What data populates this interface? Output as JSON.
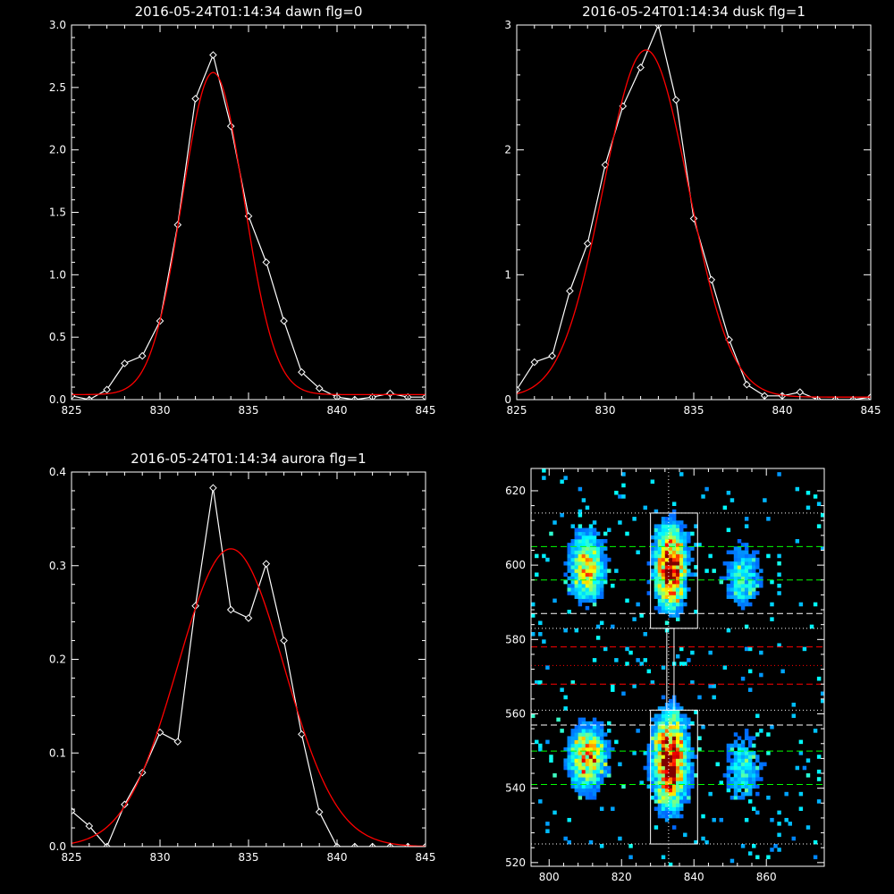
{
  "chart_data": [
    {
      "type": "line",
      "title": "2016-05-24T01:14:34 dawn flg=0",
      "xlim": [
        825,
        845
      ],
      "ylim": [
        0,
        3.0
      ],
      "xticks": [
        825,
        830,
        835,
        840,
        845
      ],
      "xtick_labels": [
        "825",
        "830",
        "835",
        "840",
        "845"
      ],
      "yticks": [
        0,
        0.5,
        1.0,
        1.5,
        2.0,
        2.5,
        3.0
      ],
      "ytick_labels": [
        "0.0",
        "0.5",
        "1.0",
        "1.5",
        "2.0",
        "2.5",
        "3.0"
      ],
      "series": [
        {
          "color": "#ffffff",
          "marker": "diamond",
          "x": [
            825,
            826,
            827,
            828,
            829,
            830,
            831,
            832,
            833,
            834,
            835,
            836,
            837,
            838,
            839,
            840,
            841,
            842,
            843,
            844,
            845
          ],
          "y": [
            0.03,
            0.0,
            0.08,
            0.29,
            0.35,
            0.63,
            1.4,
            2.41,
            2.76,
            2.19,
            1.47,
            1.1,
            0.63,
            0.22,
            0.09,
            0.02,
            0.0,
            0.02,
            0.05,
            0.02,
            0.02
          ]
        },
        {
          "color": "#ff0000",
          "marker": "none",
          "model": "gaussian",
          "amp": 2.58,
          "center": 833.0,
          "sigma": 1.75,
          "offset": 0.04
        }
      ]
    },
    {
      "type": "line",
      "title": "2016-05-24T01:14:34 dusk flg=1",
      "xlim": [
        825,
        845
      ],
      "ylim": [
        0,
        3
      ],
      "xticks": [
        825,
        830,
        835,
        840,
        845
      ],
      "xtick_labels": [
        "825",
        "830",
        "835",
        "840",
        "845"
      ],
      "yticks": [
        0,
        1,
        2,
        3
      ],
      "ytick_labels": [
        "0",
        "1",
        "2",
        "3"
      ],
      "series": [
        {
          "color": "#ffffff",
          "marker": "diamond",
          "x": [
            825,
            826,
            827,
            828,
            829,
            830,
            831,
            832,
            833,
            834,
            835,
            836,
            837,
            838,
            839,
            840,
            841,
            842,
            843,
            844,
            845
          ],
          "y": [
            0.08,
            0.3,
            0.35,
            0.87,
            1.25,
            1.88,
            2.35,
            2.66,
            3.0,
            2.4,
            1.45,
            0.96,
            0.48,
            0.12,
            0.03,
            0.03,
            0.06,
            0.0,
            0.0,
            0.0,
            0.02
          ]
        },
        {
          "color": "#ff0000",
          "marker": "none",
          "model": "gaussian",
          "amp": 2.78,
          "center": 832.3,
          "sigma": 2.4,
          "offset": 0.02
        }
      ]
    },
    {
      "type": "line",
      "title": "2016-05-24T01:14:34 aurora flg=1",
      "xlim": [
        825,
        845
      ],
      "ylim": [
        0,
        0.4
      ],
      "xticks": [
        825,
        830,
        835,
        840,
        845
      ],
      "xtick_labels": [
        "825",
        "830",
        "835",
        "840",
        "845"
      ],
      "yticks": [
        0,
        0.1,
        0.2,
        0.3,
        0.4
      ],
      "ytick_labels": [
        "0.0",
        "0.1",
        "0.2",
        "0.3",
        "0.4"
      ],
      "series": [
        {
          "color": "#ffffff",
          "marker": "diamond",
          "x": [
            825,
            826,
            827,
            828,
            829,
            830,
            831,
            832,
            833,
            834,
            835,
            836,
            837,
            838,
            839,
            840,
            841,
            842,
            843,
            844,
            845
          ],
          "y": [
            0.038,
            0.022,
            0.0,
            0.045,
            0.079,
            0.122,
            0.112,
            0.257,
            0.383,
            0.253,
            0.244,
            0.302,
            0.22,
            0.12,
            0.037,
            0.0,
            0.0,
            0.0,
            0.0,
            0.0,
            0.0
          ]
        },
        {
          "color": "#ff0000",
          "marker": "none",
          "model": "gaussian",
          "amp": 0.318,
          "center": 834.0,
          "sigma": 3.0,
          "offset": 0.0
        }
      ]
    },
    {
      "type": "heatmap",
      "title": "",
      "xlim": [
        795,
        876
      ],
      "ylim": [
        519,
        626
      ],
      "xticks": [
        800,
        820,
        840,
        860
      ],
      "xtick_labels": [
        "800",
        "820",
        "840",
        "860"
      ],
      "yticks": [
        520,
        540,
        560,
        580,
        600,
        620
      ],
      "ytick_labels": [
        "520",
        "540",
        "560",
        "580",
        "600",
        "620"
      ],
      "emission_blobs": [
        {
          "x": 810,
          "y": 599,
          "sx": 2.8,
          "sy": 5.5,
          "peak": 0.62
        },
        {
          "x": 810,
          "y": 548,
          "sx": 3.0,
          "sy": 5.0,
          "peak": 0.68
        },
        {
          "x": 833,
          "y": 599,
          "sx": 2.6,
          "sy": 7.0,
          "peak": 0.95
        },
        {
          "x": 833,
          "y": 547,
          "sx": 2.8,
          "sy": 8.0,
          "peak": 0.98
        },
        {
          "x": 853,
          "y": 596,
          "sx": 3.0,
          "sy": 5.0,
          "peak": 0.3
        },
        {
          "x": 853,
          "y": 545,
          "sx": 3.0,
          "sy": 5.0,
          "peak": 0.3
        }
      ],
      "boxes": [
        {
          "x0": 828,
          "x1": 841,
          "y0": 583,
          "y1": 614,
          "color": "#ffffff"
        },
        {
          "x0": 828,
          "x1": 841,
          "y0": 525,
          "y1": 561,
          "color": "#ffffff"
        },
        {
          "x0": 832.5,
          "x1": 834.5,
          "y0": 561,
          "y1": 583,
          "color": "#ffffff"
        }
      ],
      "vline": {
        "x": 833,
        "color": "#ffffff",
        "style": "dotted"
      },
      "hlines": [
        {
          "y": 614,
          "color": "#ffffff",
          "style": "dotted"
        },
        {
          "y": 605,
          "color": "#00ff00",
          "style": "dashed"
        },
        {
          "y": 596,
          "color": "#00ff00",
          "style": "dashed"
        },
        {
          "y": 587,
          "color": "#ffffff",
          "style": "dashed"
        },
        {
          "y": 583,
          "color": "#ffffff",
          "style": "dotted"
        },
        {
          "y": 578,
          "color": "#ff0000",
          "style": "dashed"
        },
        {
          "y": 573,
          "color": "#ff0000",
          "style": "dotted"
        },
        {
          "y": 568,
          "color": "#ff0000",
          "style": "dashed"
        },
        {
          "y": 561,
          "color": "#ffffff",
          "style": "dotted"
        },
        {
          "y": 557,
          "color": "#ffffff",
          "style": "dashed"
        },
        {
          "y": 550,
          "color": "#00ff00",
          "style": "dashed"
        },
        {
          "y": 541,
          "color": "#00ff00",
          "style": "dashed"
        },
        {
          "y": 525,
          "color": "#ffffff",
          "style": "dotted"
        }
      ]
    }
  ]
}
